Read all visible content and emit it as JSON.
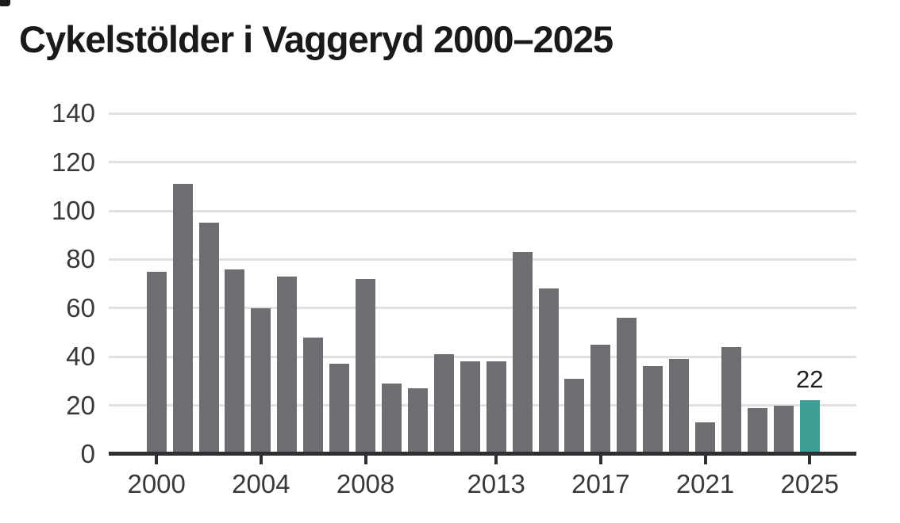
{
  "title": "Cykelstölder i Vaggeryd 2000–2025",
  "chart_data": {
    "type": "bar",
    "title": "Cykelstölder i Vaggeryd 2000–2025",
    "x": [
      2000,
      2001,
      2002,
      2003,
      2004,
      2005,
      2006,
      2007,
      2008,
      2009,
      2010,
      2011,
      2012,
      2013,
      2014,
      2015,
      2016,
      2017,
      2018,
      2019,
      2020,
      2021,
      2022,
      2023,
      2024,
      2025
    ],
    "values": [
      75,
      111,
      95,
      76,
      60,
      73,
      48,
      37,
      72,
      29,
      27,
      41,
      38,
      38,
      83,
      68,
      31,
      45,
      56,
      36,
      39,
      13,
      44,
      19,
      20,
      22
    ],
    "xlabel": "",
    "ylabel": "",
    "ylim": [
      0,
      140
    ],
    "yticks": [
      0,
      20,
      40,
      60,
      80,
      100,
      120,
      140
    ],
    "xticks": [
      2000,
      2004,
      2008,
      2013,
      2017,
      2021,
      2025
    ],
    "grid": "horizontal",
    "legend": "none",
    "highlight": {
      "year": 2025,
      "label": "22"
    }
  },
  "colors": {
    "bar": "#6e6d71",
    "highlight_bar": "#3e9f96",
    "gridline": "#e1e1e1",
    "axis": "#2f2e31",
    "tick_label": "#39383b",
    "title": "#1a1a1a",
    "annotation": "#1e1e1e",
    "background": "#ffffff"
  }
}
